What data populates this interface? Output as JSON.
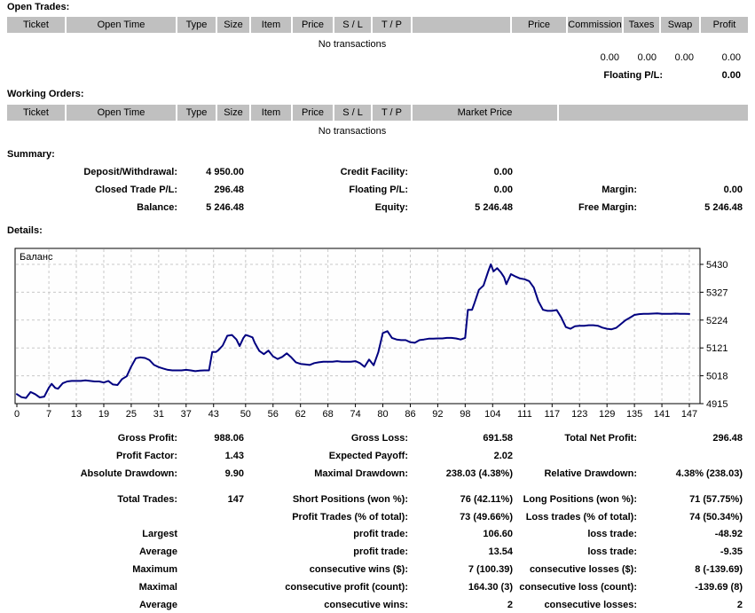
{
  "open_trades": {
    "heading": "Open Trades:",
    "columns": [
      "Ticket",
      "Open Time",
      "Type",
      "Size",
      "Item",
      "Price",
      "S / L",
      "T / P",
      "",
      "Price",
      "Commission",
      "Taxes",
      "Swap",
      "Profit"
    ],
    "empty_text": "No transactions",
    "totals": [
      "0.00",
      "0.00",
      "0.00",
      "0.00"
    ],
    "floating": {
      "label": "Floating P/L:",
      "value": "0.00"
    }
  },
  "working_orders": {
    "heading": "Working Orders:",
    "columns": [
      "Ticket",
      "Open Time",
      "Type",
      "Size",
      "Item",
      "Price",
      "S / L",
      "T / P",
      "Market Price",
      ""
    ],
    "empty_text": "No transactions"
  },
  "summary": {
    "heading": "Summary:",
    "rows": [
      [
        "Deposit/Withdrawal:",
        "4 950.00",
        "Credit Facility:",
        "0.00",
        "",
        ""
      ],
      [
        "Closed Trade P/L:",
        "296.48",
        "Floating P/L:",
        "0.00",
        "Margin:",
        "0.00"
      ],
      [
        "Balance:",
        "5 246.48",
        "Equity:",
        "5 246.48",
        "Free Margin:",
        "5 246.48"
      ]
    ]
  },
  "details": {
    "heading": "Details:"
  },
  "chart_data": {
    "type": "line",
    "title": "Баланс",
    "xlabel": "",
    "ylabel": "",
    "xlim": [
      0,
      147
    ],
    "ylim": [
      4915,
      5430
    ],
    "x_ticks": [
      0,
      7,
      13,
      19,
      25,
      31,
      37,
      43,
      50,
      56,
      62,
      68,
      74,
      80,
      86,
      92,
      98,
      104,
      111,
      117,
      123,
      129,
      135,
      141,
      147
    ],
    "y_ticks": [
      4915,
      5018,
      5121,
      5224,
      5327,
      5430
    ],
    "grid": true,
    "legend_position": "none",
    "line_color": "#000080",
    "grid_color": "#c8c8c8",
    "plot_bg": "#fefefe",
    "series": [
      {
        "name": "Баланс",
        "points": [
          [
            0,
            4950
          ],
          [
            1,
            4939
          ],
          [
            2,
            4936
          ],
          [
            3,
            4958
          ],
          [
            4,
            4950
          ],
          [
            5,
            4938
          ],
          [
            6,
            4941
          ],
          [
            7,
            4974
          ],
          [
            7.6,
            4988
          ],
          [
            8.4,
            4973
          ],
          [
            9,
            4970
          ],
          [
            10,
            4990
          ],
          [
            11,
            4997
          ],
          [
            12,
            4999
          ],
          [
            13,
            4999
          ],
          [
            14,
            4999
          ],
          [
            15,
            5001
          ],
          [
            16,
            4999
          ],
          [
            17,
            4997
          ],
          [
            18,
            4997
          ],
          [
            19,
            4993
          ],
          [
            20,
            4999
          ],
          [
            21,
            4986
          ],
          [
            22,
            4984
          ],
          [
            23,
            5006
          ],
          [
            24,
            5016
          ],
          [
            25,
            5052
          ],
          [
            26,
            5083
          ],
          [
            27,
            5086
          ],
          [
            28,
            5084
          ],
          [
            29,
            5076
          ],
          [
            30,
            5058
          ],
          [
            31,
            5050
          ],
          [
            32,
            5045
          ],
          [
            33,
            5040
          ],
          [
            34,
            5038
          ],
          [
            35,
            5038
          ],
          [
            36,
            5038
          ],
          [
            37,
            5040
          ],
          [
            38,
            5038
          ],
          [
            39,
            5035
          ],
          [
            40,
            5037
          ],
          [
            41,
            5038
          ],
          [
            42,
            5038
          ],
          [
            42.7,
            5106
          ],
          [
            43.5,
            5106
          ],
          [
            44,
            5112
          ],
          [
            45,
            5130
          ],
          [
            46,
            5166
          ],
          [
            47,
            5169
          ],
          [
            48,
            5152
          ],
          [
            48.7,
            5128
          ],
          [
            49.5,
            5157
          ],
          [
            50,
            5169
          ],
          [
            50.6,
            5166
          ],
          [
            51.5,
            5160
          ],
          [
            52,
            5140
          ],
          [
            53,
            5110
          ],
          [
            54,
            5098
          ],
          [
            55,
            5111
          ],
          [
            56,
            5090
          ],
          [
            57,
            5080
          ],
          [
            58,
            5088
          ],
          [
            59,
            5101
          ],
          [
            60,
            5086
          ],
          [
            61,
            5068
          ],
          [
            62,
            5062
          ],
          [
            63,
            5060
          ],
          [
            64,
            5058
          ],
          [
            65,
            5065
          ],
          [
            66,
            5068
          ],
          [
            67,
            5070
          ],
          [
            68,
            5070
          ],
          [
            69,
            5070
          ],
          [
            70,
            5072
          ],
          [
            71,
            5070
          ],
          [
            72,
            5070
          ],
          [
            73,
            5070
          ],
          [
            74,
            5072
          ],
          [
            75,
            5065
          ],
          [
            76,
            5051
          ],
          [
            77,
            5078
          ],
          [
            78,
            5057
          ],
          [
            79,
            5105
          ],
          [
            80,
            5176
          ],
          [
            81,
            5183
          ],
          [
            82,
            5158
          ],
          [
            83,
            5152
          ],
          [
            84,
            5150
          ],
          [
            85,
            5150
          ],
          [
            86,
            5142
          ],
          [
            87,
            5140
          ],
          [
            88,
            5150
          ],
          [
            89,
            5152
          ],
          [
            90,
            5155
          ],
          [
            91,
            5155
          ],
          [
            92,
            5156
          ],
          [
            93,
            5156
          ],
          [
            94,
            5158
          ],
          [
            95,
            5158
          ],
          [
            96,
            5156
          ],
          [
            97,
            5152
          ],
          [
            98,
            5158
          ],
          [
            98.6,
            5262
          ],
          [
            99.5,
            5262
          ],
          [
            100,
            5285
          ],
          [
            101,
            5336
          ],
          [
            102,
            5352
          ],
          [
            103,
            5402
          ],
          [
            103.6,
            5430
          ],
          [
            104.2,
            5404
          ],
          [
            105,
            5416
          ],
          [
            105.8,
            5400
          ],
          [
            106.5,
            5382
          ],
          [
            107,
            5357
          ],
          [
            108,
            5394
          ],
          [
            109,
            5385
          ],
          [
            110,
            5378
          ],
          [
            111,
            5375
          ],
          [
            112,
            5368
          ],
          [
            113,
            5344
          ],
          [
            114,
            5294
          ],
          [
            115,
            5262
          ],
          [
            116,
            5258
          ],
          [
            117,
            5258
          ],
          [
            118,
            5261
          ],
          [
            119,
            5234
          ],
          [
            120,
            5198
          ],
          [
            121,
            5192
          ],
          [
            122,
            5201
          ],
          [
            123,
            5203
          ],
          [
            124,
            5203
          ],
          [
            125,
            5205
          ],
          [
            126,
            5205
          ],
          [
            127,
            5203
          ],
          [
            128,
            5196
          ],
          [
            129,
            5192
          ],
          [
            130,
            5190
          ],
          [
            131,
            5195
          ],
          [
            132,
            5209
          ],
          [
            133,
            5223
          ],
          [
            134,
            5233
          ],
          [
            135,
            5243
          ],
          [
            136,
            5246
          ],
          [
            137,
            5247
          ],
          [
            138,
            5247
          ],
          [
            139,
            5248
          ],
          [
            140,
            5249
          ],
          [
            141,
            5247
          ],
          [
            142,
            5247
          ],
          [
            143,
            5247
          ],
          [
            144,
            5248
          ],
          [
            145,
            5247
          ],
          [
            146,
            5247
          ],
          [
            147,
            5246.48
          ]
        ]
      }
    ]
  },
  "stats": {
    "rows": [
      [
        "Gross Profit:",
        "988.06",
        "Gross Loss:",
        "691.58",
        "Total Net Profit:",
        "296.48"
      ],
      [
        "Profit Factor:",
        "1.43",
        "Expected Payoff:",
        "2.02",
        "",
        ""
      ],
      [
        "Absolute Drawdown:",
        "9.90",
        "Maximal Drawdown:",
        "238.03 (4.38%)",
        "Relative Drawdown:",
        "4.38% (238.03)"
      ],
      [
        "Total Trades:",
        "147",
        "Short Positions (won %):",
        "76 (42.11%)",
        "Long Positions (won %):",
        "71 (57.75%)"
      ],
      [
        "",
        "",
        "Profit Trades (% of total):",
        "73 (49.66%)",
        "Loss trades (% of total):",
        "74 (50.34%)"
      ],
      [
        "Largest",
        "",
        "profit trade:",
        "106.60",
        "loss trade:",
        "-48.92"
      ],
      [
        "Average",
        "",
        "profit trade:",
        "13.54",
        "loss trade:",
        "-9.35"
      ],
      [
        "Maximum",
        "",
        "consecutive wins ($):",
        "7 (100.39)",
        "consecutive losses ($):",
        "8 (-139.69)"
      ],
      [
        "Maximal",
        "",
        "consecutive profit (count):",
        "164.30 (3)",
        "consecutive loss (count):",
        "-139.69 (8)"
      ],
      [
        "Average",
        "",
        "consecutive wins:",
        "2",
        "consecutive losses:",
        "2"
      ]
    ]
  }
}
